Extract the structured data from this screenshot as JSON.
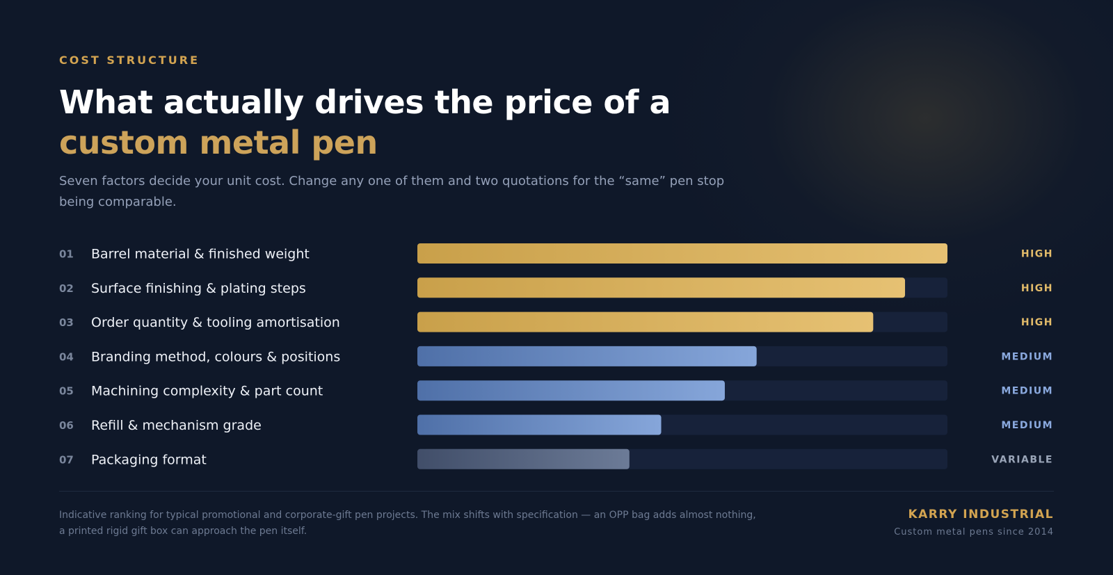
{
  "header": {
    "eyebrow": "COST STRUCTURE",
    "title_line1": "What actually drives the price of a",
    "title_line2": "custom metal pen",
    "subtitle": "Seven factors decide your unit cost. Change any one of them and two quotations for the “same” pen stop being comparable."
  },
  "chart_data": {
    "type": "bar",
    "orientation": "horizontal",
    "categories": [
      "Barrel material & finished weight",
      "Surface finishing & plating steps",
      "Order quantity & tooling amortisation",
      "Branding method, colours & positions",
      "Machining complexity & part count",
      "Refill & mechanism grade",
      "Packaging format"
    ],
    "numbers": [
      "01",
      "02",
      "03",
      "04",
      "05",
      "06",
      "07"
    ],
    "values": [
      100,
      92,
      86,
      64,
      58,
      46,
      40
    ],
    "levels": [
      "HIGH",
      "HIGH",
      "HIGH",
      "MEDIUM",
      "MEDIUM",
      "MEDIUM",
      "VARIABLE"
    ],
    "xlim": [
      0,
      100
    ],
    "grid": false,
    "level_colors": {
      "HIGH": {
        "from": "#c9a04a",
        "to": "#e6c173",
        "text": "#e2bb6a"
      },
      "MEDIUM": {
        "from": "#4f70a8",
        "to": "#86a6da",
        "text": "#8aa9de"
      },
      "VARIABLE": {
        "from": "#414e69",
        "to": "#6c7b97",
        "text": "#9aa5b8"
      }
    },
    "track_color": "#17223a"
  },
  "footer": {
    "note": "Indicative ranking for typical promotional and corporate-gift pen projects. The mix shifts with specification — an OPP bag adds almost nothing, a printed rigid gift box can approach the pen itself.",
    "brand_name": "KARRY INDUSTRIAL",
    "brand_tagline": "Custom metal pens since 2014"
  }
}
